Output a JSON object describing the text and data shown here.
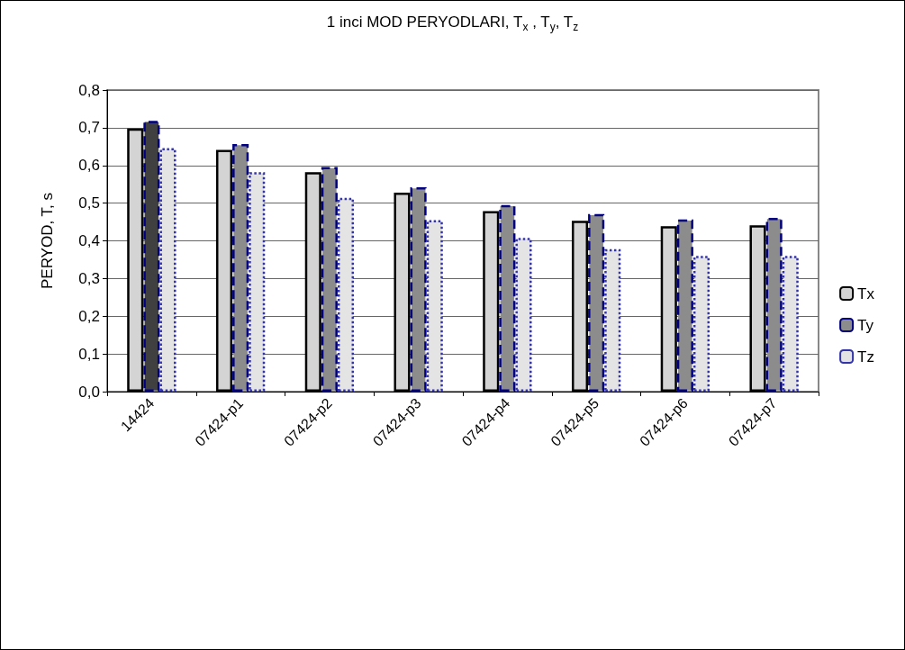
{
  "chart_data": {
    "type": "bar",
    "title": "1 inci MOD PERYODLARI, T$_{x}$ , T$_{y}$, T$_{z}$",
    "ylabel": "PERYOD, T, s",
    "categories": [
      "14424",
      "07424-p1",
      "07424-p2",
      "07424-p3",
      "07424-p4",
      "07424-p5",
      "07424-p6",
      "07424-p7"
    ],
    "series": [
      {
        "name": "Tx",
        "color": "#d4d4d4",
        "line_style": "solid",
        "values": [
          0.698,
          0.641,
          0.582,
          0.528,
          0.479,
          0.453,
          0.439,
          0.441
        ]
      },
      {
        "name": "Ty",
        "color": "#8c8c8c",
        "colors": [
          "#404040",
          "#8c8c8c",
          "#8c8c8c",
          "#8c8c8c",
          "#8c8c8c",
          "#8c8c8c",
          "#8c8c8c",
          "#8c8c8c"
        ],
        "line_style": "dashed",
        "values": [
          0.718,
          0.657,
          0.596,
          0.542,
          0.495,
          0.471,
          0.457,
          0.461
        ]
      },
      {
        "name": "Tz",
        "color": "#e4e4e4",
        "line_style": "dotted",
        "values": [
          0.646,
          0.582,
          0.514,
          0.455,
          0.408,
          0.378,
          0.36,
          0.36
        ]
      }
    ],
    "ylim": [
      0,
      0.8
    ],
    "yticks": [
      {
        "value": 0,
        "label": "0,0"
      },
      {
        "value": 0.1,
        "label": "0,1"
      },
      {
        "value": 0.2,
        "label": "0,2"
      },
      {
        "value": 0.3,
        "label": "0,3"
      },
      {
        "value": 0.4,
        "label": "0,4"
      },
      {
        "value": 0.5,
        "label": "0,5"
      },
      {
        "value": 0.6,
        "label": "0,6"
      },
      {
        "value": 0.7,
        "label": "0,7"
      },
      {
        "value": 0.8,
        "label": "0,8"
      }
    ],
    "grid": "y",
    "legend": "right"
  }
}
